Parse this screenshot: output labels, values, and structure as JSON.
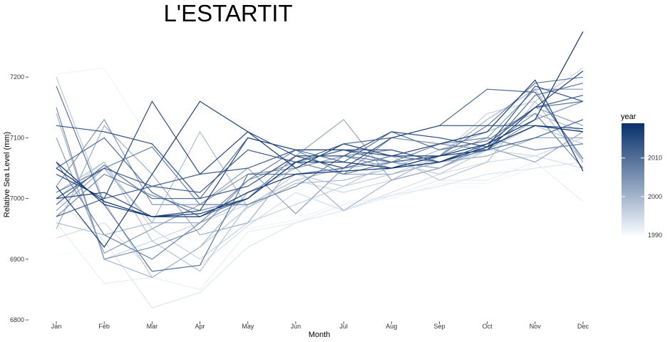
{
  "chart_data": {
    "type": "line",
    "title": "L'ESTARTIT",
    "xlabel": "Month",
    "ylabel": "Relative Sea Level (mm)",
    "x": [
      "Jan",
      "Feb",
      "Mar",
      "Apr",
      "May",
      "Jun",
      "Jul",
      "Aug",
      "Sep",
      "Oct",
      "Nov",
      "Dec"
    ],
    "ylim": [
      6800,
      7280
    ],
    "yticks": [
      6800,
      6900,
      7000,
      7100,
      7200
    ],
    "grid": false,
    "color_scale": {
      "low": "#f7fbff",
      "high": "#08306b"
    },
    "legend": {
      "title": "year",
      "position": "right",
      "range": [
        1990,
        2019
      ],
      "ticks": [
        1990,
        2000,
        2010
      ]
    },
    "series": [
      {
        "year": 1990,
        "values": [
          6910,
          6910,
          6905,
          6935,
          6970,
          6970,
          6985,
          7000,
          7020,
          7060,
          7040,
          7045
        ]
      },
      {
        "year": 1991,
        "values": [
          7205,
          7215,
          7090,
          6995,
          6950,
          6965,
          6995,
          7000,
          7025,
          7025,
          7050,
          7060
        ]
      },
      {
        "year": 1992,
        "values": [
          6960,
          6860,
          6870,
          6850,
          6945,
          6960,
          6990,
          7005,
          7030,
          7030,
          7060,
          6995
        ]
      },
      {
        "year": 1993,
        "values": [
          7000,
          6930,
          6820,
          6845,
          6920,
          6960,
          6980,
          7005,
          7020,
          7040,
          7050,
          7060
        ]
      },
      {
        "year": 1994,
        "values": [
          6935,
          6960,
          6880,
          6890,
          6955,
          7010,
          6980,
          7010,
          7040,
          7060,
          7070,
          7050
        ]
      },
      {
        "year": 1995,
        "values": [
          7150,
          6900,
          6930,
          6960,
          6990,
          7030,
          7010,
          7030,
          7050,
          7080,
          7070,
          7100
        ]
      },
      {
        "year": 1996,
        "values": [
          7000,
          7060,
          6950,
          6900,
          6960,
          6990,
          7020,
          7040,
          7070,
          7140,
          7160,
          7215
        ]
      },
      {
        "year": 1997,
        "values": [
          7200,
          6995,
          6870,
          6920,
          6985,
          7040,
          7020,
          7060,
          7040,
          7080,
          7120,
          7090
        ]
      },
      {
        "year": 1998,
        "values": [
          7010,
          7060,
          6930,
          6880,
          6990,
          7030,
          7050,
          7070,
          7030,
          7060,
          7160,
          7060
        ]
      },
      {
        "year": 1999,
        "values": [
          6960,
          6940,
          6960,
          7110,
          6985,
          7025,
          7030,
          7050,
          7080,
          7110,
          7140,
          7110
        ]
      },
      {
        "year": 2000,
        "values": [
          7140,
          6900,
          6870,
          6920,
          7010,
          7050,
          6980,
          7030,
          7070,
          7130,
          7180,
          7060
        ]
      },
      {
        "year": 2001,
        "values": [
          6950,
          7120,
          7040,
          6940,
          6960,
          7060,
          7040,
          7040,
          7060,
          7070,
          7100,
          7100
        ]
      },
      {
        "year": 2002,
        "values": [
          6980,
          7050,
          6960,
          6960,
          7000,
          7070,
          7130,
          7030,
          7050,
          7085,
          7060,
          7110
        ]
      },
      {
        "year": 2003,
        "values": [
          7100,
          6910,
          6950,
          6990,
          7050,
          6975,
          7050,
          7060,
          7050,
          7090,
          7150,
          7120
        ]
      },
      {
        "year": 2004,
        "values": [
          7020,
          7130,
          6990,
          6990,
          7040,
          7050,
          7070,
          7050,
          7070,
          7100,
          7180,
          7180
        ]
      },
      {
        "year": 2005,
        "values": [
          7150,
          6900,
          6920,
          6950,
          7030,
          7060,
          7040,
          7100,
          7090,
          7080,
          7130,
          7160
        ]
      },
      {
        "year": 2006,
        "values": [
          6970,
          7040,
          7005,
          6980,
          7000,
          7070,
          7070,
          7080,
          7060,
          7085,
          7140,
          7050
        ]
      },
      {
        "year": 2007,
        "values": [
          7060,
          6940,
          6900,
          6960,
          7030,
          7080,
          7040,
          7060,
          7090,
          7100,
          7080,
          7090
        ]
      },
      {
        "year": 2008,
        "values": [
          7010,
          7050,
          7085,
          6990,
          6990,
          7020,
          7070,
          7060,
          7070,
          7120,
          7190,
          7200
        ]
      },
      {
        "year": 2009,
        "values": [
          7185,
          6990,
          6880,
          6890,
          7040,
          7040,
          7050,
          7070,
          7060,
          7080,
          7170,
          7190
        ]
      },
      {
        "year": 2010,
        "values": [
          6990,
          7055,
          7000,
          7000,
          7100,
          7080,
          7060,
          7110,
          7080,
          7095,
          7150,
          7160
        ]
      },
      {
        "year": 2011,
        "values": [
          7050,
          7100,
          7010,
          6970,
          7000,
          7060,
          7090,
          7100,
          7120,
          7180,
          7175,
          7065
        ]
      },
      {
        "year": 2012,
        "values": [
          6970,
          7000,
          7020,
          7040,
          7050,
          7080,
          7080,
          7060,
          7070,
          7080,
          7100,
          7130
        ]
      },
      {
        "year": 2013,
        "values": [
          7000,
          7050,
          7020,
          7010,
          7080,
          7060,
          7080,
          7080,
          7060,
          7090,
          7150,
          7170
        ]
      },
      {
        "year": 2014,
        "values": [
          7120,
          7110,
          7090,
          7000,
          7020,
          7070,
          7070,
          7110,
          7100,
          7085,
          7185,
          7160
        ]
      },
      {
        "year": 2015,
        "values": [
          7040,
          7000,
          7160,
          7040,
          7110,
          7070,
          7050,
          7100,
          7120,
          7120,
          7120,
          7115
        ]
      },
      {
        "year": 2016,
        "values": [
          7000,
          7010,
          6970,
          6980,
          7100,
          7080,
          7080,
          7070,
          7070,
          7080,
          7150,
          7210
        ]
      },
      {
        "year": 2017,
        "values": [
          7020,
          6920,
          7040,
          7160,
          7110,
          7050,
          7090,
          7070,
          7090,
          7110,
          7195,
          7045
        ]
      },
      {
        "year": 2018,
        "values": [
          7060,
          6990,
          6970,
          6975,
          7000,
          7060,
          7060,
          7050,
          7070,
          7090,
          7130,
          7275
        ]
      },
      {
        "year": 2019,
        "values": [
          7050,
          6995,
          6970,
          6970,
          7010,
          7040,
          7045,
          7050,
          7060,
          7085,
          7120,
          7110
        ]
      }
    ]
  }
}
